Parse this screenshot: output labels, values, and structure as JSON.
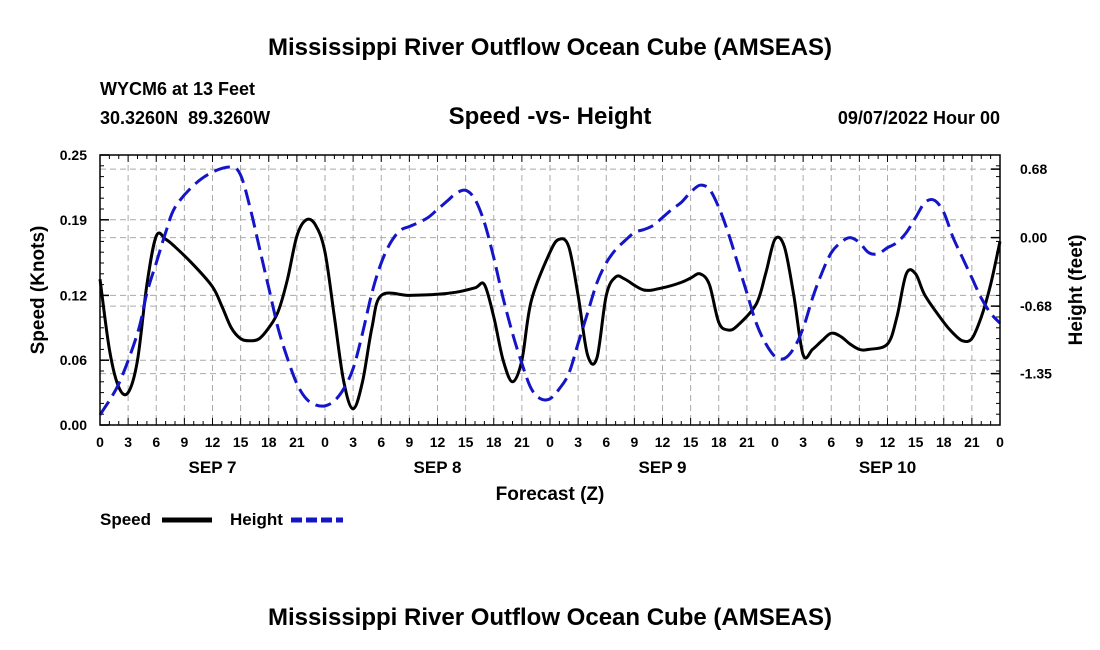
{
  "chart_data": {
    "type": "line",
    "title": "Mississippi River Outflow Ocean Cube (AMSEAS)",
    "footer_title": "Mississippi River Outflow Ocean Cube (AMSEAS)",
    "station": "WYCM6 at 13 Feet",
    "coords": "30.3260N  89.3260W",
    "subtitle": "Speed -vs- Height",
    "date": "09/07/2022 Hour 00",
    "xlabel": "Forecast (Z)",
    "ylabel_left": "Speed (Knots)",
    "ylabel_right": "Height (feet)",
    "xlim": [
      0,
      96
    ],
    "ylim_left": [
      0,
      0.25
    ],
    "ylim_right": [
      -1.86,
      0.82
    ],
    "x_ticks": [
      0,
      3,
      6,
      9,
      12,
      15,
      18,
      21,
      24,
      27,
      30,
      33,
      36,
      39,
      42,
      45,
      48,
      51,
      54,
      57,
      60,
      63,
      66,
      69,
      72,
      75,
      78,
      81,
      84,
      87,
      90,
      93,
      96
    ],
    "x_tick_labels": [
      "0",
      "3",
      "6",
      "9",
      "12",
      "15",
      "18",
      "21",
      "0",
      "3",
      "6",
      "9",
      "12",
      "15",
      "18",
      "21",
      "0",
      "3",
      "6",
      "9",
      "12",
      "15",
      "18",
      "21",
      "0",
      "3",
      "6",
      "9",
      "12",
      "15",
      "18",
      "21",
      "0"
    ],
    "day_labels": [
      {
        "x": 12,
        "text": "SEP 7"
      },
      {
        "x": 36,
        "text": "SEP 8"
      },
      {
        "x": 60,
        "text": "SEP 9"
      },
      {
        "x": 84,
        "text": "SEP 10"
      }
    ],
    "y_left_ticks": [
      0.0,
      0.06,
      0.12,
      0.19,
      0.25
    ],
    "y_left_tick_labels": [
      "0.00",
      "0.06",
      "0.12",
      "0.19",
      "0.25"
    ],
    "y_right_ticks": [
      0.68,
      0.0,
      -0.68,
      -1.35
    ],
    "y_right_tick_labels": [
      "0.68",
      "0.00",
      "-0.68",
      "-1.35"
    ],
    "legend": [
      {
        "name": "Speed",
        "color": "#000000",
        "dash": "solid"
      },
      {
        "name": "Height",
        "color": "#1515c8",
        "dash": "dashed"
      }
    ],
    "series": [
      {
        "name": "Speed",
        "axis": "left",
        "color": "#000000",
        "points": [
          [
            0,
            0.135
          ],
          [
            1,
            0.07
          ],
          [
            2,
            0.035
          ],
          [
            3,
            0.03
          ],
          [
            4,
            0.06
          ],
          [
            5,
            0.13
          ],
          [
            6,
            0.175
          ],
          [
            7,
            0.172
          ],
          [
            8,
            0.165
          ],
          [
            10,
            0.148
          ],
          [
            12,
            0.128
          ],
          [
            13,
            0.11
          ],
          [
            14,
            0.09
          ],
          [
            15,
            0.08
          ],
          [
            16,
            0.078
          ],
          [
            17,
            0.08
          ],
          [
            18,
            0.09
          ],
          [
            19,
            0.105
          ],
          [
            20,
            0.135
          ],
          [
            21,
            0.175
          ],
          [
            22,
            0.19
          ],
          [
            23,
            0.185
          ],
          [
            24,
            0.16
          ],
          [
            25,
            0.1
          ],
          [
            26,
            0.04
          ],
          [
            27,
            0.015
          ],
          [
            28,
            0.04
          ],
          [
            29,
            0.09
          ],
          [
            30,
            0.12
          ],
          [
            33,
            0.12
          ],
          [
            36,
            0.121
          ],
          [
            38,
            0.123
          ],
          [
            40,
            0.127
          ],
          [
            41,
            0.13
          ],
          [
            42,
            0.1
          ],
          [
            43,
            0.06
          ],
          [
            44,
            0.04
          ],
          [
            45,
            0.06
          ],
          [
            46,
            0.115
          ],
          [
            48,
            0.16
          ],
          [
            49,
            0.172
          ],
          [
            50,
            0.165
          ],
          [
            51,
            0.12
          ],
          [
            52,
            0.065
          ],
          [
            53,
            0.062
          ],
          [
            54,
            0.12
          ],
          [
            55,
            0.137
          ],
          [
            56,
            0.135
          ],
          [
            58,
            0.125
          ],
          [
            60,
            0.127
          ],
          [
            62,
            0.132
          ],
          [
            63,
            0.136
          ],
          [
            64,
            0.14
          ],
          [
            65,
            0.13
          ],
          [
            66,
            0.095
          ],
          [
            67,
            0.088
          ],
          [
            68,
            0.092
          ],
          [
            70,
            0.112
          ],
          [
            71,
            0.14
          ],
          [
            72,
            0.172
          ],
          [
            73,
            0.165
          ],
          [
            74,
            0.12
          ],
          [
            75,
            0.065
          ],
          [
            76,
            0.07
          ],
          [
            77,
            0.078
          ],
          [
            78,
            0.085
          ],
          [
            79,
            0.082
          ],
          [
            80,
            0.075
          ],
          [
            81,
            0.07
          ],
          [
            82,
            0.07
          ],
          [
            84,
            0.075
          ],
          [
            85,
            0.1
          ],
          [
            86,
            0.14
          ],
          [
            87,
            0.14
          ],
          [
            88,
            0.12
          ],
          [
            90,
            0.095
          ],
          [
            91,
            0.085
          ],
          [
            92,
            0.078
          ],
          [
            93,
            0.08
          ],
          [
            94,
            0.1
          ],
          [
            95,
            0.13
          ],
          [
            96,
            0.17
          ]
        ]
      },
      {
        "name": "Height",
        "axis": "right",
        "color": "#1515c8",
        "points": [
          [
            0,
            -1.76
          ],
          [
            2,
            -1.45
          ],
          [
            4,
            -0.95
          ],
          [
            5,
            -0.55
          ],
          [
            6,
            -0.25
          ],
          [
            7,
            0.05
          ],
          [
            8,
            0.3
          ],
          [
            10,
            0.52
          ],
          [
            12,
            0.65
          ],
          [
            14,
            0.7
          ],
          [
            15,
            0.62
          ],
          [
            16,
            0.3
          ],
          [
            17,
            -0.1
          ],
          [
            18,
            -0.5
          ],
          [
            19,
            -0.9
          ],
          [
            20,
            -1.2
          ],
          [
            21,
            -1.45
          ],
          [
            22,
            -1.6
          ],
          [
            23,
            -1.66
          ],
          [
            24,
            -1.67
          ],
          [
            25,
            -1.62
          ],
          [
            26,
            -1.5
          ],
          [
            27,
            -1.3
          ],
          [
            28,
            -0.95
          ],
          [
            29,
            -0.55
          ],
          [
            30,
            -0.25
          ],
          [
            31,
            -0.05
          ],
          [
            32,
            0.07
          ],
          [
            33,
            0.11
          ],
          [
            34,
            0.15
          ],
          [
            35,
            0.2
          ],
          [
            36,
            0.28
          ],
          [
            37,
            0.36
          ],
          [
            38,
            0.44
          ],
          [
            39,
            0.47
          ],
          [
            40,
            0.38
          ],
          [
            41,
            0.15
          ],
          [
            42,
            -0.2
          ],
          [
            43,
            -0.6
          ],
          [
            44,
            -0.95
          ],
          [
            45,
            -1.25
          ],
          [
            46,
            -1.5
          ],
          [
            47,
            -1.6
          ],
          [
            48,
            -1.6
          ],
          [
            49,
            -1.5
          ],
          [
            50,
            -1.35
          ],
          [
            51,
            -1.05
          ],
          [
            52,
            -0.75
          ],
          [
            53,
            -0.45
          ],
          [
            54,
            -0.25
          ],
          [
            55,
            -0.12
          ],
          [
            56,
            -0.03
          ],
          [
            57,
            0.05
          ],
          [
            58,
            0.08
          ],
          [
            59,
            0.12
          ],
          [
            60,
            0.2
          ],
          [
            61,
            0.28
          ],
          [
            62,
            0.35
          ],
          [
            63,
            0.45
          ],
          [
            64,
            0.52
          ],
          [
            65,
            0.48
          ],
          [
            66,
            0.3
          ],
          [
            67,
            0.05
          ],
          [
            68,
            -0.25
          ],
          [
            69,
            -0.55
          ],
          [
            70,
            -0.85
          ],
          [
            71,
            -1.05
          ],
          [
            72,
            -1.18
          ],
          [
            73,
            -1.2
          ],
          [
            74,
            -1.1
          ],
          [
            75,
            -0.9
          ],
          [
            76,
            -0.6
          ],
          [
            77,
            -0.35
          ],
          [
            78,
            -0.15
          ],
          [
            79,
            -0.05
          ],
          [
            80,
            0.0
          ],
          [
            81,
            -0.05
          ],
          [
            82,
            -0.15
          ],
          [
            83,
            -0.16
          ],
          [
            84,
            -0.1
          ],
          [
            85,
            -0.05
          ],
          [
            86,
            0.05
          ],
          [
            87,
            0.2
          ],
          [
            88,
            0.35
          ],
          [
            89,
            0.37
          ],
          [
            90,
            0.25
          ],
          [
            91,
            0.0
          ],
          [
            92,
            -0.2
          ],
          [
            93,
            -0.4
          ],
          [
            94,
            -0.6
          ],
          [
            95,
            -0.75
          ],
          [
            96,
            -0.85
          ]
        ]
      }
    ]
  }
}
